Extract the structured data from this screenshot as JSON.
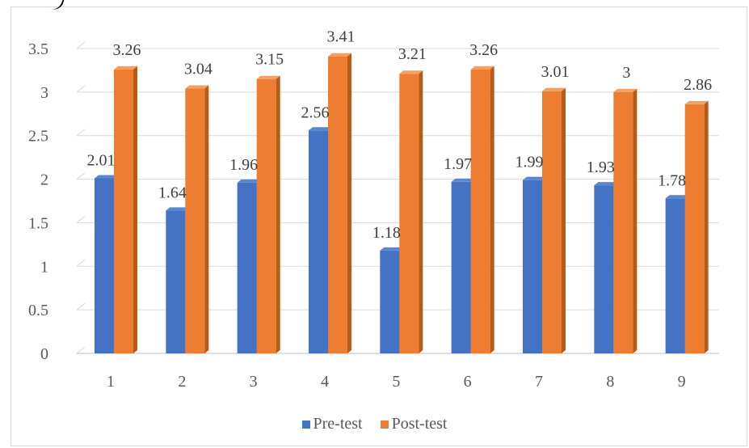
{
  "colors": {
    "pre_front": "#4472C4",
    "pre_top": "#5B86D1",
    "pre_side": "#2F5597",
    "post_front": "#ED7D31",
    "post_top": "#F4A063",
    "post_side": "#B85A18",
    "grid": "#D9D9D9",
    "axis": "#BFBFBF"
  },
  "chart_data": {
    "type": "bar",
    "categories": [
      "1",
      "2",
      "3",
      "4",
      "5",
      "6",
      "7",
      "8",
      "9"
    ],
    "series": [
      {
        "name": "Pre-test",
        "values": [
          2.01,
          1.64,
          1.96,
          2.56,
          1.18,
          1.97,
          1.99,
          1.93,
          1.78
        ]
      },
      {
        "name": "Post-test",
        "values": [
          3.26,
          3.04,
          3.15,
          3.41,
          3.21,
          3.26,
          3.01,
          3,
          2.86
        ]
      }
    ],
    "data_labels": {
      "Pre-test": [
        "2.01",
        "1.64",
        "1.96",
        "2.56",
        "1.18",
        "1.97",
        "1.99",
        "1.93",
        "1.78"
      ],
      "Post-test": [
        "3.26",
        "3.04",
        "3.15",
        "3.41",
        "3.21",
        "3.26",
        "3.01",
        "3",
        "2.86"
      ]
    },
    "yticks": [
      "0",
      "0.5",
      "1",
      "1.5",
      "2",
      "2.5",
      "3",
      "3.5"
    ],
    "ylim": [
      0,
      3.5
    ],
    "grid": true,
    "legend_position": "bottom",
    "style": "3d-clustered-column"
  },
  "legend": {
    "pre_label": "Pre-test",
    "post_label": "Post-test"
  }
}
